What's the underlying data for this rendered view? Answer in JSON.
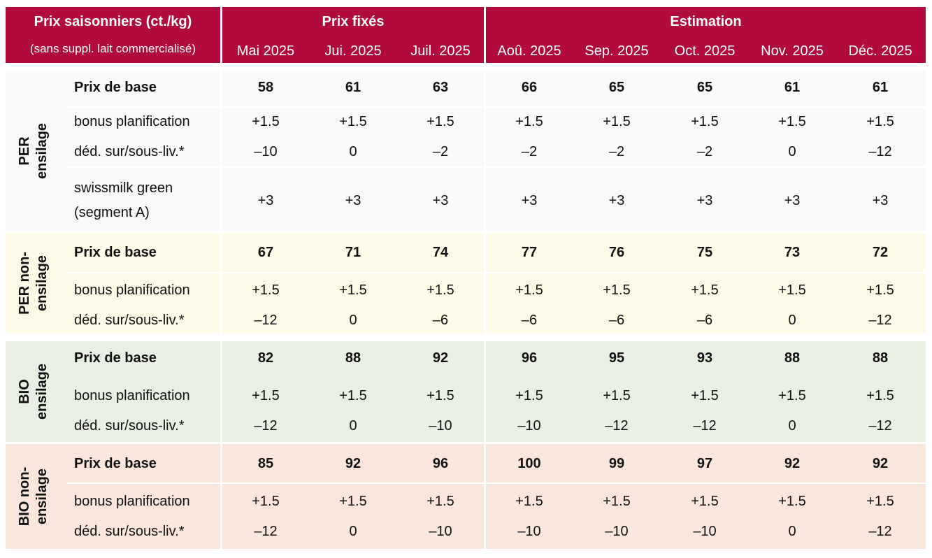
{
  "header": {
    "title": "Prix saisonniers (ct./kg)",
    "subtitle": "(sans suppl. lait commercialisé)",
    "group_fixed": "Prix fixés",
    "group_estimate": "Estimation",
    "months": [
      "Mai 2025",
      "Jui. 2025",
      "Juil. 2025",
      "Aoû. 2025",
      "Sep. 2025",
      "Oct. 2025",
      "Nov. 2025",
      "Déc. 2025"
    ]
  },
  "colors": {
    "header_bg": "#b00b3b",
    "per_ensilage": "#f9f9f9",
    "per_non_ensilage": "#fdfbe6",
    "bio_ensilage": "#e9efe2",
    "bio_non_ensilage": "#fbe6dc"
  },
  "sections": [
    {
      "key": "per_ensilage",
      "label_line1": "PER",
      "label_line2": "ensilage",
      "rows": [
        {
          "label": "Prix de base",
          "bold": true,
          "values": [
            "58",
            "61",
            "63",
            "66",
            "65",
            "65",
            "61",
            "61"
          ]
        },
        {
          "label": "bonus planification",
          "bold": false,
          "values": [
            "+1.5",
            "+1.5",
            "+1.5",
            "+1.5",
            "+1.5",
            "+1.5",
            "+1.5",
            "+1.5"
          ]
        },
        {
          "label": "déd. sur/sous-liv.*",
          "bold": false,
          "values": [
            "–10",
            "0",
            "–2",
            "–2",
            "–2",
            "–2",
            "0",
            "–12"
          ]
        },
        {
          "label": "swissmilk green",
          "label2": "(segment A)",
          "bold": false,
          "values": [
            "+3",
            "+3",
            "+3",
            "+3",
            "+3",
            "+3",
            "+3",
            "+3"
          ]
        }
      ]
    },
    {
      "key": "per_non_ensilage",
      "label_line1": "PER non-",
      "label_line2": "ensilage",
      "rows": [
        {
          "label": "Prix de base",
          "bold": true,
          "values": [
            "67",
            "71",
            "74",
            "77",
            "76",
            "75",
            "73",
            "72"
          ]
        },
        {
          "label": "bonus planification",
          "bold": false,
          "values": [
            "+1.5",
            "+1.5",
            "+1.5",
            "+1.5",
            "+1.5",
            "+1.5",
            "+1.5",
            "+1.5"
          ]
        },
        {
          "label": "déd. sur/sous-liv.*",
          "bold": false,
          "values": [
            "–12",
            "0",
            "–6",
            "–6",
            "–6",
            "–6",
            "0",
            "–12"
          ]
        }
      ]
    },
    {
      "key": "bio_ensilage",
      "label_line1": "BIO",
      "label_line2": "ensilage",
      "rows": [
        {
          "label": "Prix de base",
          "bold": true,
          "values": [
            "82",
            "88",
            "92",
            "96",
            "95",
            "93",
            "88",
            "88"
          ]
        },
        {
          "label": "bonus planification",
          "bold": false,
          "values": [
            "+1.5",
            "+1.5",
            "+1.5",
            "+1.5",
            "+1.5",
            "+1.5",
            "+1.5",
            "+1.5"
          ]
        },
        {
          "label": "déd. sur/sous-liv.*",
          "bold": false,
          "values": [
            "–12",
            "0",
            "–10",
            "–10",
            "–12",
            "–12",
            "0",
            "–12"
          ]
        }
      ]
    },
    {
      "key": "bio_non_ensilage",
      "label_line1": "BIO non-",
      "label_line2": "ensilage",
      "rows": [
        {
          "label": "Prix de base",
          "bold": true,
          "values": [
            "85",
            "92",
            "96",
            "100",
            "99",
            "97",
            "92",
            "92"
          ]
        },
        {
          "label": "bonus planification",
          "bold": false,
          "values": [
            "+1.5",
            "+1.5",
            "+1.5",
            "+1.5",
            "+1.5",
            "+1.5",
            "+1.5",
            "+1.5"
          ]
        },
        {
          "label": "déd. sur/sous-liv.*",
          "bold": false,
          "values": [
            "–12",
            "0",
            "–10",
            "–10",
            "–10",
            "–10",
            "0",
            "–12"
          ]
        }
      ]
    }
  ]
}
